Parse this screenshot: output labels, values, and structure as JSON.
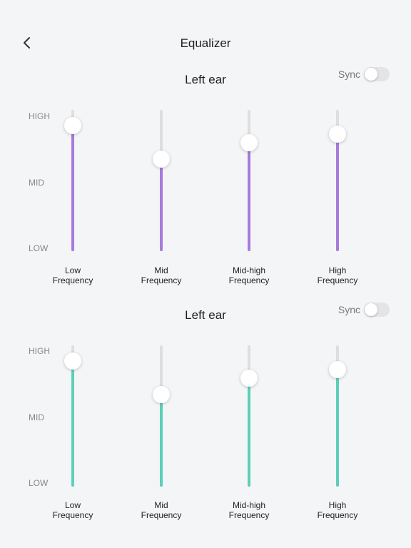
{
  "header": {
    "title": "Equalizer",
    "back_icon": "chevron-left-icon"
  },
  "levels": {
    "high": "HIGH",
    "mid": "MID",
    "low": "LOW"
  },
  "sections": [
    {
      "title": "Left ear",
      "sync_label": "Sync",
      "sync_on": false,
      "color": "#a77bdb",
      "bands": [
        {
          "line1": "Low",
          "line2": "Frequency",
          "value": 0.89
        },
        {
          "line1": "Mid",
          "line2": "Frequency",
          "value": 0.65
        },
        {
          "line1": "Mid-high",
          "line2": "Frequency",
          "value": 0.77
        },
        {
          "line1": "High",
          "line2": "Frequency",
          "value": 0.83
        }
      ]
    },
    {
      "title": "Left ear",
      "sync_label": "Sync",
      "sync_on": false,
      "color": "#5ecfb8",
      "bands": [
        {
          "line1": "Low",
          "line2": "Frequency",
          "value": 0.89
        },
        {
          "line1": "Mid",
          "line2": "Frequency",
          "value": 0.65
        },
        {
          "line1": "Mid-high",
          "line2": "Frequency",
          "value": 0.77
        },
        {
          "line1": "High",
          "line2": "Frequency",
          "value": 0.83
        }
      ]
    }
  ]
}
